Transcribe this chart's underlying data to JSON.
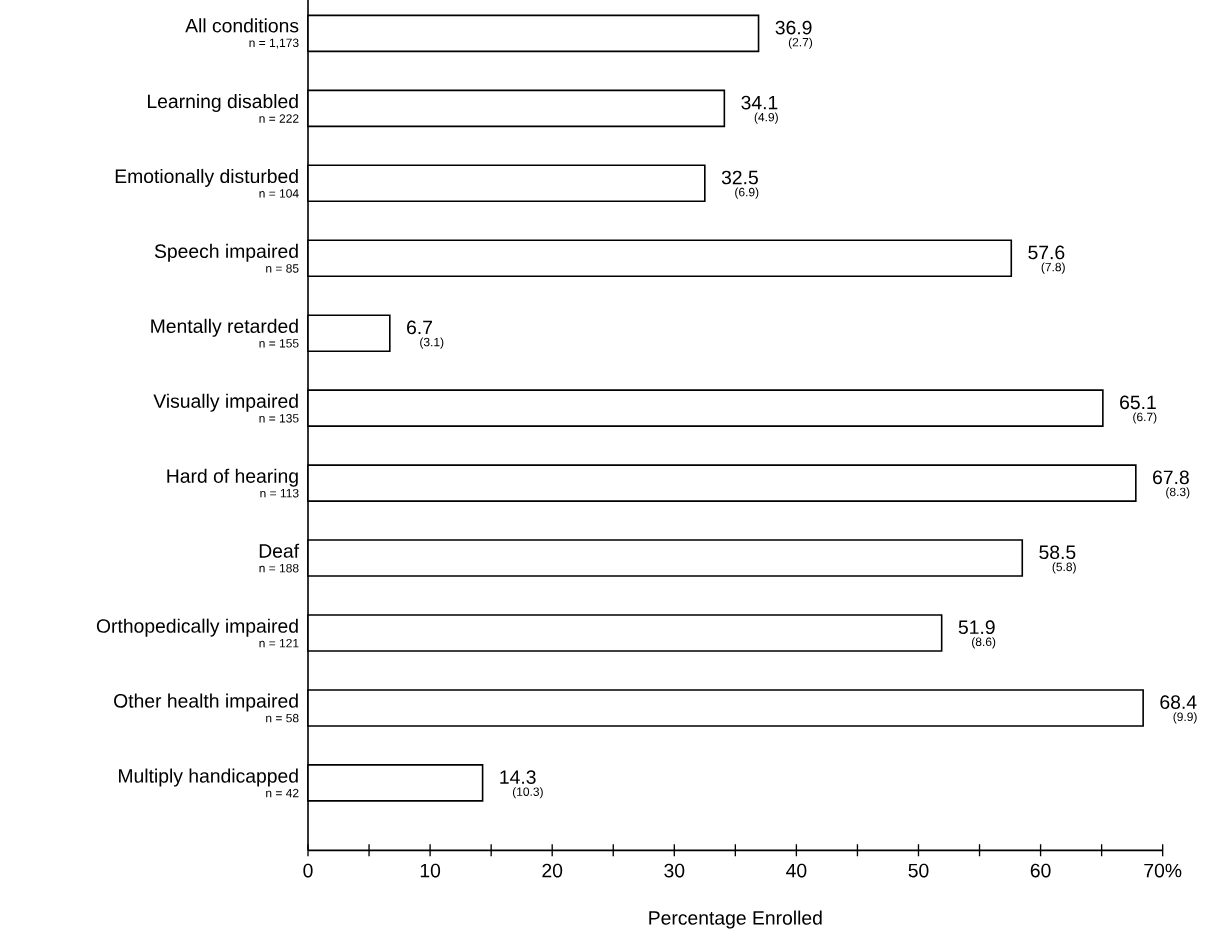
{
  "chart_data": {
    "type": "bar",
    "orientation": "horizontal",
    "xlabel": "Percentage Enrolled",
    "categories": [
      "All conditions",
      "Learning disabled",
      "Emotionally disturbed",
      "Speech impaired",
      "Mentally retarded",
      "Visually impaired",
      "Hard of hearing",
      "Deaf",
      "Orthopedically impaired",
      "Other health impaired",
      "Multiply handicapped"
    ],
    "values": [
      36.9,
      34.1,
      32.5,
      57.6,
      6.7,
      65.1,
      67.8,
      58.5,
      51.9,
      68.4,
      14.3
    ],
    "color": "#ffffff",
    "data_labels": true,
    "xlim": [
      0,
      70
    ],
    "xticks": [
      0,
      {
        "value": 5,
        "label": null
      },
      10,
      {
        "value": 15,
        "label": null
      },
      20,
      {
        "value": 25,
        "label": null
      },
      30,
      {
        "value": 35,
        "label": null
      },
      40,
      {
        "value": 45,
        "label": null
      },
      50,
      {
        "value": 55,
        "label": null
      },
      60,
      {
        "value": 65,
        "label": null
      },
      {
        "value": 70,
        "label": "70%"
      }
    ],
    "annotations": [
      "n = 1,173",
      "n = 222",
      "n = 104",
      "n = 85",
      "n = 155",
      "n = 135",
      "n = 113",
      "n = 188",
      "n = 121",
      "n = 58",
      "n = 42",
      {
        "text": "(2.7)",
        "x": 36.9,
        "y": "All conditions"
      },
      {
        "text": "(4.9)",
        "x": 34.1,
        "y": "Learning disabled"
      },
      {
        "text": "(6.9)",
        "x": 32.5,
        "y": "Emotionally disturbed"
      },
      {
        "text": "(7.8)",
        "x": 57.6,
        "y": "Speech impaired"
      },
      {
        "text": "(3.1)",
        "x": 6.7,
        "y": "Mentally retarded"
      },
      {
        "text": "(6.7)",
        "x": 65.1,
        "y": "Visually impaired"
      },
      {
        "text": "(8.3)",
        "x": 67.8,
        "y": "Hard of hearing"
      },
      {
        "text": "(5.8)",
        "x": 58.5,
        "y": "Deaf"
      },
      {
        "text": "(8.6)",
        "x": 51.9,
        "y": "Orthopedically impaired"
      },
      {
        "text": "(9.9)",
        "x": 68.4,
        "y": "Other health impaired"
      },
      {
        "text": "(10.3)",
        "x": 14.3,
        "y": "Multiply handicapped"
      }
    ]
  }
}
